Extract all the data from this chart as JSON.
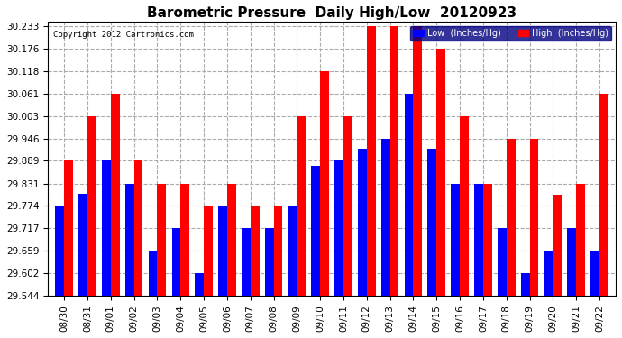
{
  "title": "Barometric Pressure  Daily High/Low  20120923",
  "copyright": "Copyright 2012 Cartronics.com",
  "legend_low": "Low  (Inches/Hg)",
  "legend_high": "High  (Inches/Hg)",
  "categories": [
    "08/30",
    "08/31",
    "09/01",
    "09/02",
    "09/03",
    "09/04",
    "09/05",
    "09/06",
    "09/07",
    "09/08",
    "09/09",
    "09/10",
    "09/11",
    "09/12",
    "09/13",
    "09/14",
    "09/15",
    "09/16",
    "09/17",
    "09/18",
    "09/19",
    "09/20",
    "09/21",
    "09/22"
  ],
  "low": [
    29.774,
    29.806,
    29.889,
    29.831,
    29.659,
    29.717,
    29.602,
    29.774,
    29.717,
    29.717,
    29.774,
    29.877,
    29.889,
    29.921,
    29.946,
    30.061,
    29.921,
    29.831,
    29.831,
    29.717,
    29.602,
    29.659,
    29.717,
    29.659
  ],
  "high": [
    29.889,
    30.003,
    30.061,
    29.889,
    29.831,
    29.831,
    29.774,
    29.831,
    29.774,
    29.774,
    30.003,
    30.118,
    30.003,
    30.233,
    30.233,
    30.233,
    30.176,
    30.003,
    29.831,
    29.946,
    29.946,
    29.803,
    29.831,
    30.061
  ],
  "ylim_min": 29.544,
  "ylim_max": 30.233,
  "yticks": [
    29.544,
    29.602,
    29.659,
    29.717,
    29.774,
    29.831,
    29.889,
    29.946,
    30.003,
    30.061,
    30.118,
    30.176,
    30.233
  ],
  "color_low": "#0000ff",
  "color_high": "#ff0000",
  "bg_color": "#ffffff",
  "plot_bg": "#ffffff",
  "bar_width": 0.38,
  "title_fontsize": 11,
  "tick_fontsize": 7.5,
  "grid_color": "#aaaaaa",
  "legend_bg": "#000080",
  "legend_text": "#ffffff"
}
